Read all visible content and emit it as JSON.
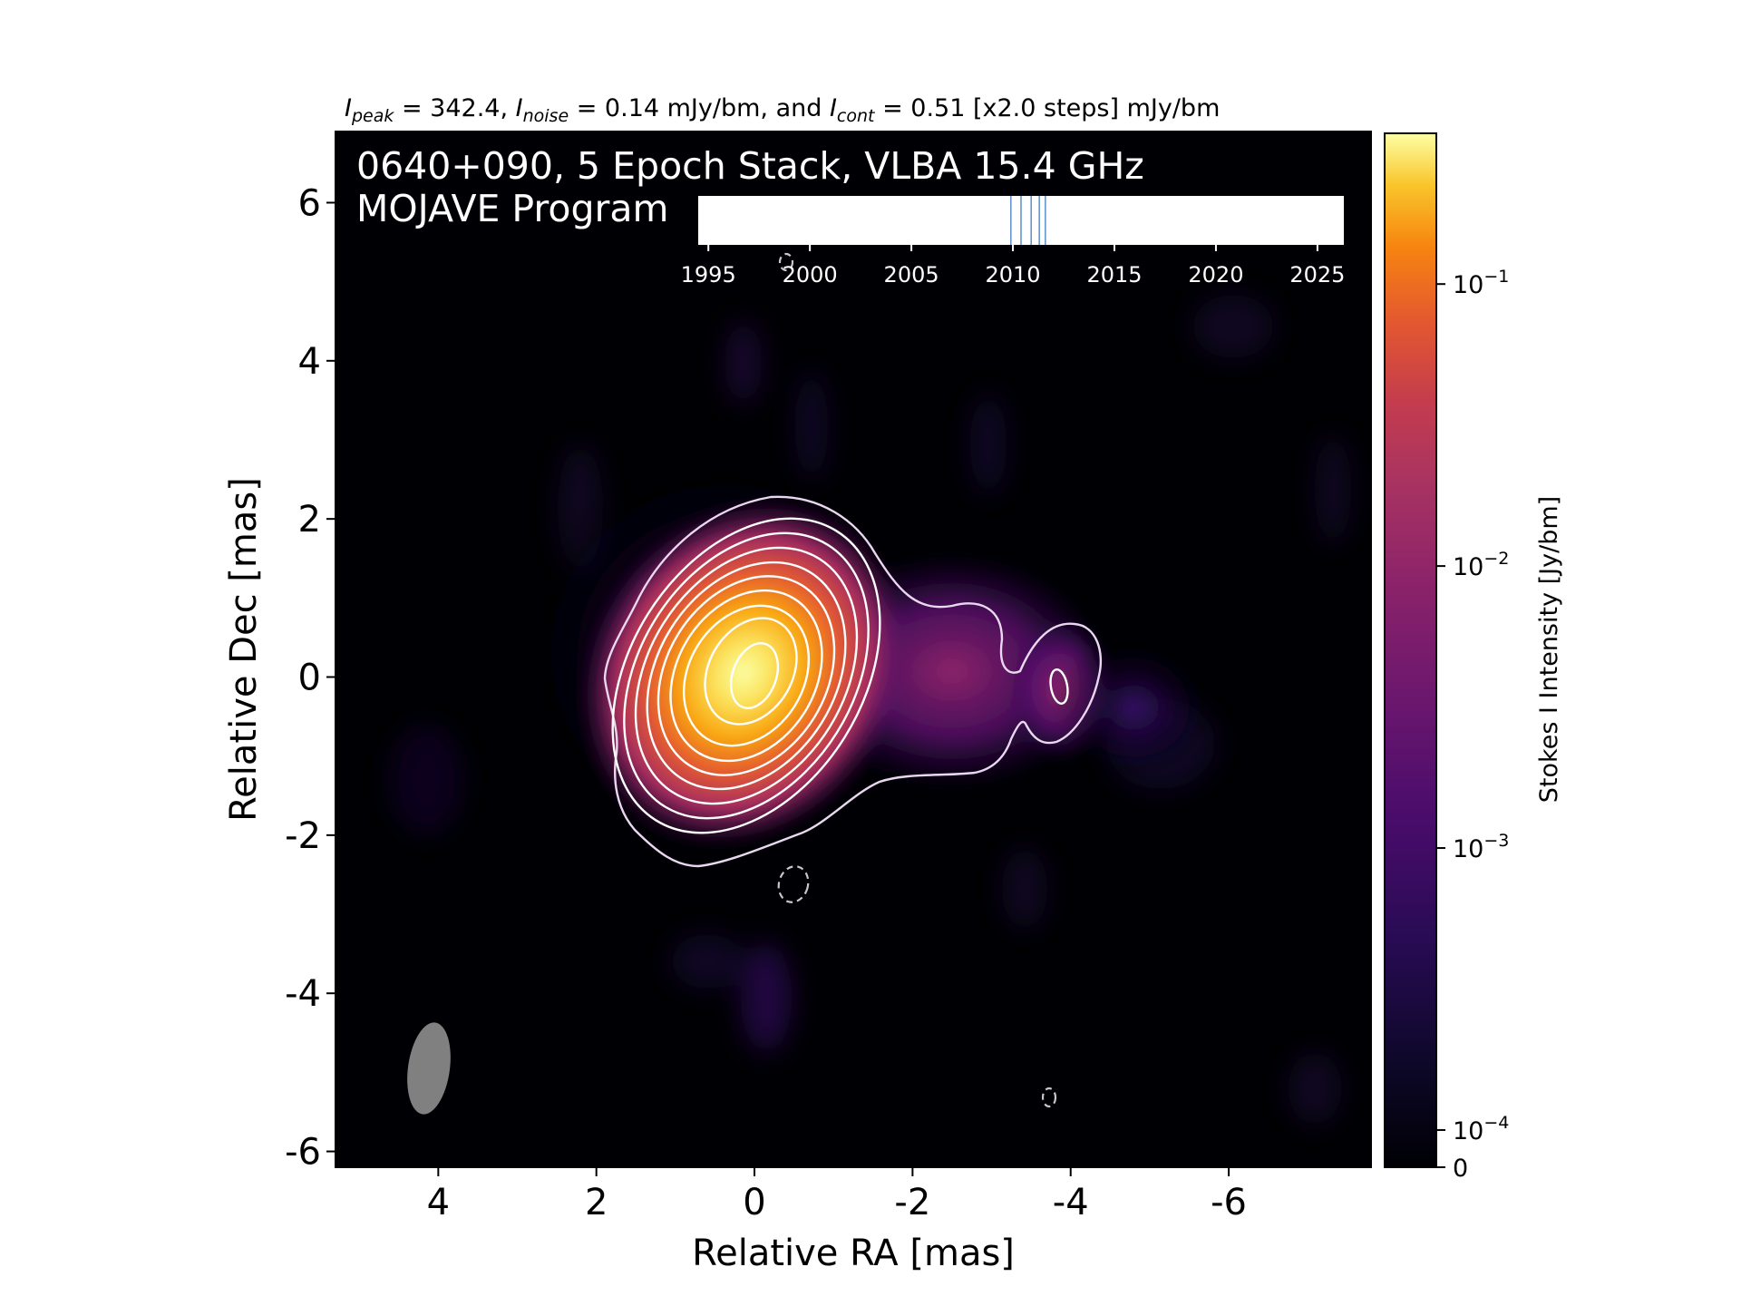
{
  "header": {
    "peak_sym": "I",
    "peak_sub": "peak",
    "peak_val": " = 342.4, ",
    "noise_sym": "I",
    "noise_sub": "noise",
    "noise_val": " = 0.14 mJy/bm, and ",
    "cont_sym": "I",
    "cont_sub": "cont",
    "cont_val": " = 0.51 [x2.0 steps] mJy/bm"
  },
  "overlay": {
    "line1": "0640+090, 5 Epoch Stack, VLBA 15.4 GHz",
    "line2": "MOJAVE Program"
  },
  "chart_data": {
    "type": "heatmap",
    "image_kind": "radio intensity map with contours",
    "source": "0640+090",
    "frequency_GHz": 15.4,
    "epochs_stacked": 5,
    "xlabel": "Relative RA [mas]",
    "ylabel": "Relative Dec [mas]",
    "xlim": [
      5.3,
      -7.8
    ],
    "ylim": [
      -6.2,
      6.9
    ],
    "x_ticks": [
      4,
      2,
      0,
      -2,
      -4,
      -6
    ],
    "x_tick_labels": [
      "4",
      "2",
      "0",
      "-2",
      "-4",
      "-6"
    ],
    "y_ticks": [
      6,
      4,
      2,
      0,
      -2,
      -4,
      -6
    ],
    "y_tick_labels": [
      "6",
      "4",
      "2",
      "0",
      "-2",
      "-4",
      "-6"
    ],
    "colormap": "inferno",
    "colors": {
      "background": "#000004",
      "contour": "#ffffff",
      "beam": "#808080",
      "epoch_line": "#5b8fc9"
    },
    "peak_mJy_per_beam": 342.4,
    "noise_mJy_per_beam": 0.14,
    "lowest_contour_mJy_per_beam": 0.51,
    "contour_step_factor": 2.0,
    "core_position_mas": [
      0,
      0
    ],
    "jet_knot_position_mas": [
      -3.9,
      -0.1
    ],
    "beam": {
      "center_mas": [
        4.1,
        -5.2
      ],
      "major_mas": 1.2,
      "minor_mas": 0.55,
      "pa_deg": -5
    },
    "colorbar": {
      "label": "Stokes I Intensity [Jy/bm]",
      "scale": "log",
      "ticks": [
        0,
        0.0001,
        0.001,
        0.01,
        0.1
      ],
      "tick_labels": [
        {
          "base": "0",
          "exp": ""
        },
        {
          "base": "10",
          "exp": "−4"
        },
        {
          "base": "10",
          "exp": "−3"
        },
        {
          "base": "10",
          "exp": "−2"
        },
        {
          "base": "10",
          "exp": "−1"
        }
      ],
      "max": 0.3424
    },
    "epoch_inset": {
      "xlim": [
        1994.5,
        2026.3
      ],
      "ticks": [
        1995,
        2000,
        2005,
        2010,
        2015,
        2020,
        2025
      ],
      "tick_labels": [
        "1995",
        "2000",
        "2005",
        "2010",
        "2015",
        "2020",
        "2025"
      ],
      "epochs": [
        2009.9,
        2010.4,
        2010.9,
        2011.3,
        2011.6
      ]
    }
  }
}
